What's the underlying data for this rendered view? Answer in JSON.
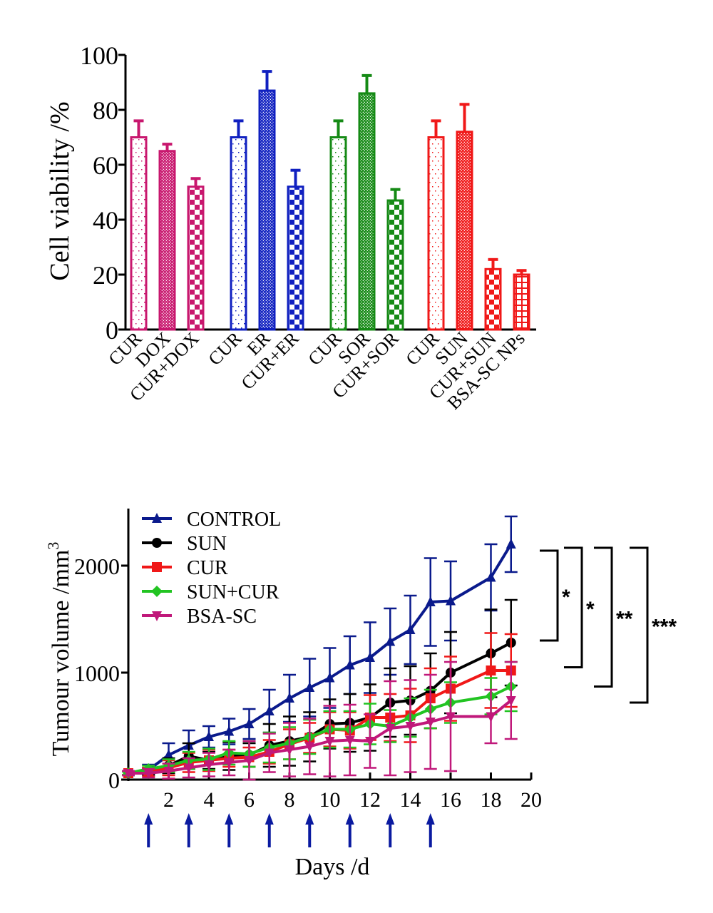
{
  "chart_data": [
    {
      "type": "bar",
      "title": "",
      "xlabel": "",
      "ylabel": "Cell viability /%",
      "ylim": [
        0,
        100
      ],
      "yticks": [
        "0",
        "20",
        "40",
        "60",
        "80",
        "100"
      ],
      "grid": false,
      "groups": [
        {
          "color": "#c8176e",
          "categories": [
            "CUR",
            "DOX",
            "CUR+DOX"
          ],
          "values": [
            70,
            65,
            52
          ],
          "errors": [
            6,
            2.5,
            3
          ],
          "patterns": [
            "dots",
            "fine-check",
            "check"
          ]
        },
        {
          "color": "#1020c0",
          "categories": [
            "CUR",
            "ER",
            "CUR+ER"
          ],
          "values": [
            70,
            87,
            52
          ],
          "errors": [
            6,
            7,
            6
          ],
          "patterns": [
            "dots",
            "fine-check",
            "check"
          ]
        },
        {
          "color": "#158a15",
          "categories": [
            "CUR",
            "SOR",
            "CUR+SOR"
          ],
          "values": [
            70,
            86,
            47
          ],
          "errors": [
            6,
            6.5,
            4
          ],
          "patterns": [
            "dots",
            "fine-check",
            "check"
          ]
        },
        {
          "color": "#f01818",
          "categories": [
            "CUR",
            "SUN",
            "CUR+SUN",
            "BSA-SC NPs"
          ],
          "values": [
            70,
            72,
            22,
            20
          ],
          "errors": [
            6,
            10,
            3.5,
            1.5
          ],
          "patterns": [
            "dots",
            "fine-check",
            "check",
            "grid"
          ]
        }
      ]
    },
    {
      "type": "line",
      "title": "",
      "xlabel": "Days /d",
      "ylabel": "Tumour volume /mm",
      "ylabel_superscript": "3",
      "xlim": [
        0,
        20
      ],
      "ylim": [
        0,
        2500
      ],
      "xticks": [
        "2",
        "4",
        "6",
        "8",
        "10",
        "12",
        "14",
        "16",
        "18",
        "20"
      ],
      "yticks": [
        "0",
        "1000",
        "2000"
      ],
      "grid": false,
      "legend_position": "top-left",
      "x": [
        0,
        1,
        2,
        3,
        4,
        5,
        6,
        7,
        8,
        9,
        10,
        11,
        12,
        13,
        14,
        15,
        16,
        18,
        19
      ],
      "series": [
        {
          "name": "CONTROL",
          "color": "#0a1a8c",
          "marker": "triangle-up",
          "values": [
            60,
            90,
            230,
            320,
            400,
            450,
            520,
            640,
            760,
            860,
            950,
            1070,
            1140,
            1290,
            1400,
            1660,
            1670,
            1890,
            2200
          ],
          "errors": [
            20,
            50,
            110,
            140,
            100,
            120,
            140,
            200,
            220,
            270,
            280,
            270,
            330,
            310,
            320,
            410,
            370,
            310,
            260
          ]
        },
        {
          "name": "SUN",
          "color": "#000000",
          "marker": "circle",
          "values": [
            60,
            80,
            130,
            220,
            180,
            220,
            230,
            320,
            360,
            400,
            520,
            530,
            580,
            720,
            740,
            830,
            1000,
            1180,
            1280
          ],
          "errors": [
            15,
            30,
            70,
            120,
            80,
            130,
            110,
            200,
            230,
            230,
            230,
            270,
            310,
            320,
            320,
            350,
            380,
            410,
            400
          ]
        },
        {
          "name": "CUR",
          "color": "#f01818",
          "marker": "square",
          "values": [
            60,
            70,
            110,
            160,
            180,
            200,
            210,
            260,
            330,
            390,
            470,
            460,
            580,
            580,
            600,
            760,
            850,
            1020,
            1020
          ],
          "errors": [
            15,
            40,
            70,
            90,
            100,
            80,
            90,
            110,
            140,
            140,
            160,
            170,
            210,
            220,
            250,
            280,
            300,
            350,
            340
          ]
        },
        {
          "name": "SUN+CUR",
          "color": "#22c422",
          "marker": "diamond",
          "values": [
            60,
            100,
            130,
            180,
            190,
            250,
            240,
            300,
            340,
            400,
            470,
            470,
            520,
            500,
            580,
            660,
            720,
            780,
            870
          ],
          "errors": [
            15,
            30,
            60,
            80,
            100,
            110,
            120,
            140,
            150,
            160,
            170,
            170,
            190,
            150,
            180,
            180,
            190,
            170,
            230
          ]
        },
        {
          "name": "BSA-SC",
          "color": "#c0187a",
          "marker": "triangle-down",
          "values": [
            60,
            60,
            80,
            110,
            140,
            160,
            180,
            250,
            280,
            310,
            360,
            370,
            360,
            480,
            500,
            540,
            590,
            590,
            740
          ],
          "errors": [
            20,
            40,
            70,
            90,
            110,
            120,
            180,
            180,
            250,
            260,
            330,
            330,
            250,
            440,
            430,
            440,
            510,
            250,
            360
          ]
        }
      ],
      "dosing_arrows_days": [
        1,
        3,
        5,
        7,
        9,
        11,
        13,
        15
      ],
      "dosing_arrow_color": "#0a1aa0",
      "significance": [
        {
          "label": "*",
          "from": 1300,
          "to": 2190
        },
        {
          "label": "*",
          "from": 1050,
          "to": 2190
        },
        {
          "label": "**",
          "from": 870,
          "to": 2190
        },
        {
          "label": "***",
          "from": 720,
          "to": 2190
        }
      ]
    }
  ]
}
